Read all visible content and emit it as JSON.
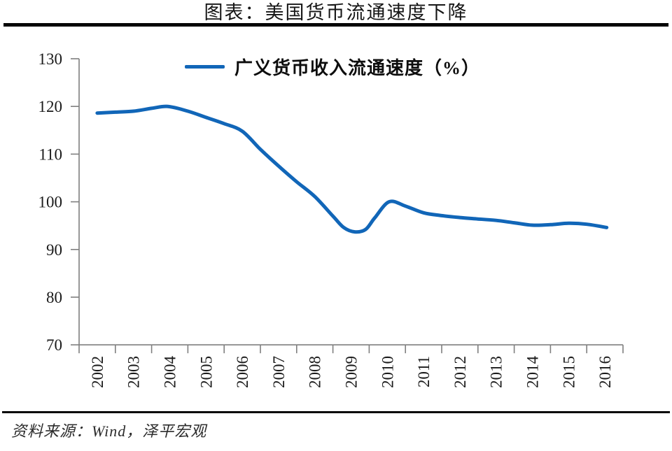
{
  "header": {
    "title": "图表：美国货币流通速度下降"
  },
  "footer": {
    "source": "资料来源：Wind，泽平宏观"
  },
  "chart_data": {
    "type": "line",
    "title": "图表：美国货币流通速度下降",
    "legend": "广义货币收入流通速度（%）",
    "legend_position": "top-center",
    "grid": false,
    "line_color": "#1166B8",
    "axis_color": "#7f7f7f",
    "text_color": "#1a1a1a",
    "ylim": [
      70,
      130
    ],
    "y_ticks": [
      "130",
      "120",
      "110",
      "100",
      "90",
      "80",
      "70"
    ],
    "categories": [
      "2002",
      "2003",
      "2004",
      "2005",
      "2006",
      "2007",
      "2008",
      "2009",
      "2010",
      "2011",
      "2012",
      "2013",
      "2014",
      "2015",
      "2016"
    ],
    "values": [
      118.6,
      119.0,
      119.9,
      117.7,
      114.8,
      107.5,
      101.1,
      93.7,
      99.9,
      97.7,
      96.7,
      96.1,
      95.1,
      95.5,
      94.9
    ],
    "smooth_points": [
      [
        2002.5,
        118.6
      ],
      [
        2003.0,
        118.8
      ],
      [
        2003.5,
        119.0
      ],
      [
        2004.0,
        119.6
      ],
      [
        2004.45,
        120.0
      ],
      [
        2005.0,
        119.0
      ],
      [
        2005.5,
        117.7
      ],
      [
        2006.0,
        116.4
      ],
      [
        2006.5,
        114.8
      ],
      [
        2007.0,
        111.0
      ],
      [
        2007.5,
        107.5
      ],
      [
        2008.0,
        104.2
      ],
      [
        2008.5,
        101.1
      ],
      [
        2009.0,
        97.0
      ],
      [
        2009.3,
        94.6
      ],
      [
        2009.6,
        93.7
      ],
      [
        2009.9,
        94.2
      ],
      [
        2010.15,
        96.6
      ],
      [
        2010.55,
        100.0
      ],
      [
        2011.0,
        99.1
      ],
      [
        2011.5,
        97.7
      ],
      [
        2012.0,
        97.1
      ],
      [
        2012.5,
        96.7
      ],
      [
        2013.0,
        96.4
      ],
      [
        2013.5,
        96.1
      ],
      [
        2014.0,
        95.6
      ],
      [
        2014.5,
        95.1
      ],
      [
        2015.0,
        95.2
      ],
      [
        2015.5,
        95.5
      ],
      [
        2016.0,
        95.3
      ],
      [
        2016.55,
        94.6
      ]
    ]
  }
}
